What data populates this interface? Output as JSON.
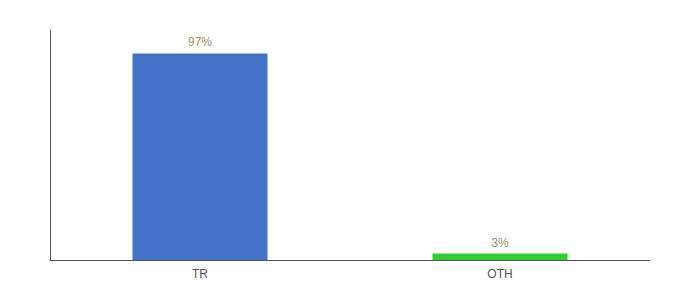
{
  "chart_data": {
    "type": "bar",
    "categories": [
      "TR",
      "OTH"
    ],
    "values": [
      97,
      3
    ],
    "value_labels": [
      "97%",
      "3%"
    ],
    "colors": [
      "#4472c4",
      "#33cc33"
    ],
    "data_labels": true,
    "ylim": [
      0,
      108
    ],
    "yticks": [],
    "tick_labels": "x",
    "grid": false
  }
}
